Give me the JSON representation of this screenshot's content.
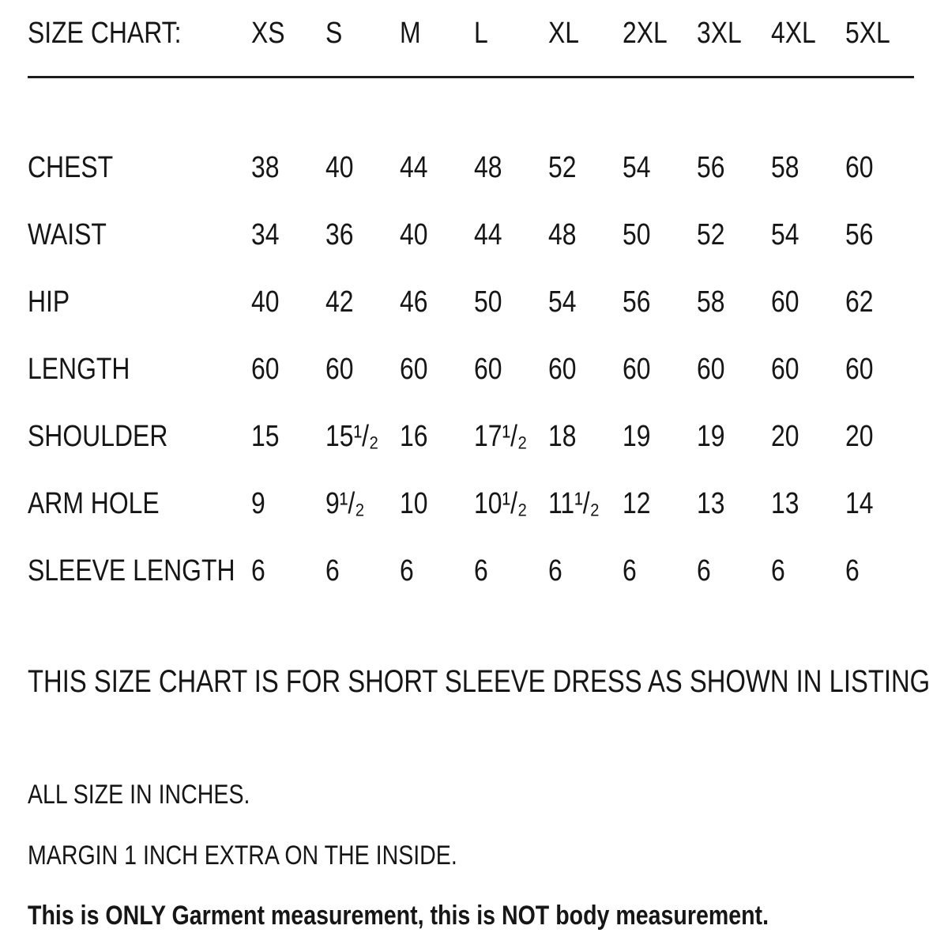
{
  "page": {
    "background": "#ffffff",
    "text_color": "#161616"
  },
  "size_chart": {
    "title": "SIZE CHART:",
    "sizes": [
      "XS",
      "S",
      "M",
      "L",
      "XL",
      "2XL",
      "3XL",
      "4XL",
      "5XL"
    ],
    "rows": [
      {
        "label": "CHEST",
        "values": [
          "38",
          "40",
          "44",
          "48",
          "52",
          "54",
          "56",
          "58",
          "60"
        ]
      },
      {
        "label": "WAIST",
        "values": [
          "34",
          "36",
          "40",
          "44",
          "48",
          "50",
          "52",
          "54",
          "56"
        ]
      },
      {
        "label": "HIP",
        "values": [
          "40",
          "42",
          "46",
          "50",
          "54",
          "56",
          "58",
          "60",
          "62"
        ]
      },
      {
        "label": "LENGTH",
        "values": [
          "60",
          "60",
          "60",
          "60",
          "60",
          "60",
          "60",
          "60",
          "60"
        ]
      },
      {
        "label": "SHOULDER",
        "values": [
          "15",
          "15¹/₂",
          "16",
          "17¹/₂",
          "18",
          "19",
          "19",
          "20",
          "20"
        ]
      },
      {
        "label": "ARM HOLE",
        "values": [
          "9",
          "9¹/₂",
          "10",
          "10¹/₂",
          "11¹/₂",
          "12",
          "13",
          "13",
          "14"
        ]
      },
      {
        "label": "SLEEVE LENGTH",
        "values": [
          "6",
          "6",
          "6",
          "6",
          "6",
          "6",
          "6",
          "6",
          "6"
        ]
      }
    ]
  },
  "notes": {
    "listing": "THIS SIZE CHART IS FOR SHORT SLEEVE DRESS AS SHOWN IN LISTING",
    "units": "ALL SIZE IN INCHES.",
    "margin": "MARGIN 1 INCH EXTRA ON THE INSIDE.",
    "disclaimer": "This is ONLY Garment measurement, this is NOT body measurement."
  },
  "chart_data": {
    "type": "table",
    "title": "SIZE CHART:",
    "columns": [
      "",
      "XS",
      "S",
      "M",
      "L",
      "XL",
      "2XL",
      "3XL",
      "4XL",
      "5XL"
    ],
    "rows": [
      [
        "CHEST",
        38,
        40,
        44,
        48,
        52,
        54,
        56,
        58,
        60
      ],
      [
        "WAIST",
        34,
        36,
        40,
        44,
        48,
        50,
        52,
        54,
        56
      ],
      [
        "HIP",
        40,
        42,
        46,
        50,
        54,
        56,
        58,
        60,
        62
      ],
      [
        "LENGTH",
        60,
        60,
        60,
        60,
        60,
        60,
        60,
        60,
        60
      ],
      [
        "SHOULDER",
        15,
        15.5,
        16,
        17.5,
        18,
        19,
        19,
        20,
        20
      ],
      [
        "ARM HOLE",
        9,
        9.5,
        10,
        10.5,
        11.5,
        12,
        13,
        13,
        14
      ],
      [
        "SLEEVE LENGTH",
        6,
        6,
        6,
        6,
        6,
        6,
        6,
        6,
        6
      ]
    ],
    "units": "inches"
  }
}
